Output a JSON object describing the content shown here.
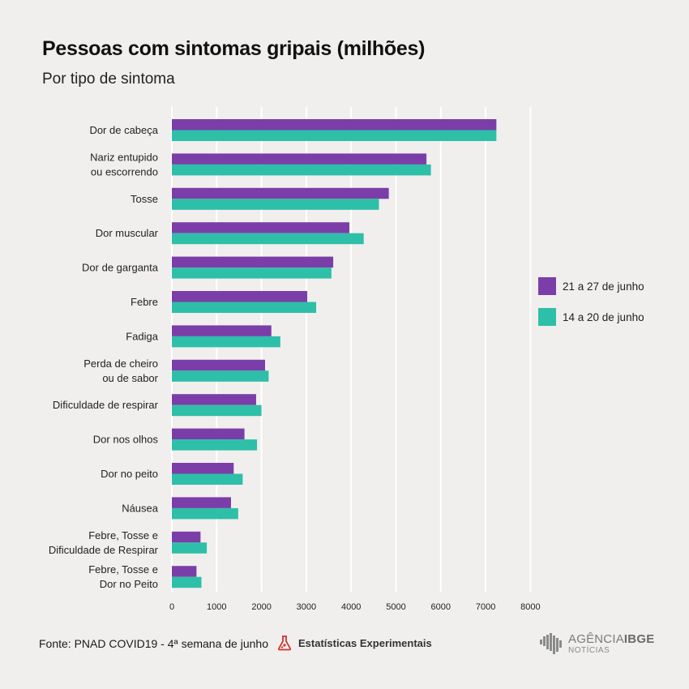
{
  "header": {
    "title": "Pessoas com sintomas gripais (milhões)",
    "subtitle": "Por tipo de sintoma"
  },
  "colors": {
    "series_1": "#7b3ea8",
    "series_2": "#2ebfa8",
    "grid": "#ffffff",
    "background": "#f0efed",
    "badge": "#d0342c"
  },
  "chart_data": {
    "type": "bar",
    "orientation": "horizontal",
    "categories": [
      [
        "Dor de cabeça"
      ],
      [
        "Nariz entupido",
        "ou escorrendo"
      ],
      [
        "Tosse"
      ],
      [
        "Dor muscular"
      ],
      [
        "Dor de garganta"
      ],
      [
        "Febre"
      ],
      [
        "Fadiga"
      ],
      [
        "Perda de cheiro",
        "ou de sabor"
      ],
      [
        "Dificuldade de respirar"
      ],
      [
        "Dor nos olhos"
      ],
      [
        "Dor no peito"
      ],
      [
        "Náusea"
      ],
      [
        "Febre, Tosse e",
        "Dificuldade de Respirar"
      ],
      [
        "Febre, Tosse e",
        "Dor no Peito"
      ]
    ],
    "series": [
      {
        "name": "21 a 27 de junho",
        "values": [
          7240,
          5680,
          4840,
          3960,
          3600,
          3020,
          2220,
          2080,
          1880,
          1620,
          1380,
          1320,
          640,
          550
        ]
      },
      {
        "name": "14 a 20 de junho",
        "values": [
          7240,
          5780,
          4620,
          4280,
          3560,
          3220,
          2420,
          2160,
          2000,
          1900,
          1580,
          1480,
          780,
          660
        ]
      }
    ],
    "xlim": [
      0,
      8000
    ],
    "xticks": [
      0,
      1000,
      2000,
      3000,
      4000,
      5000,
      6000,
      7000,
      8000
    ],
    "grid": "vertical",
    "legend_position": "right"
  },
  "footer": {
    "source": "Fonte: PNAD COVID19 - 4ª semana de junho",
    "badge_label": "Estatísticas Experimentais"
  },
  "logo": {
    "brand_light": "AGÊNCIA",
    "brand_bold": "IBGE",
    "sub": "NOTÍCIAS"
  }
}
